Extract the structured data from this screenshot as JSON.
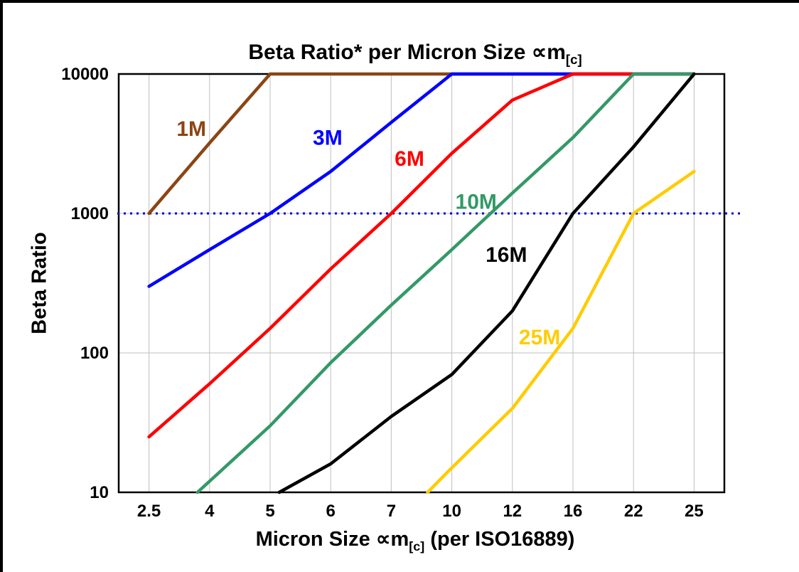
{
  "chart_data": {
    "type": "line",
    "title": {
      "pre": "Beta Ratio* per Micron Size ",
      "sym": "∝m",
      "sub": "[c]"
    },
    "xlabel": {
      "pre": "Micron Size ",
      "sym": "∝m",
      "sub": "[c]",
      "post": " (per ISO16889)"
    },
    "ylabel": "Beta Ratio",
    "x_categories": [
      "2.5",
      "4",
      "5",
      "6",
      "7",
      "10",
      "12",
      "16",
      "22",
      "25"
    ],
    "y_ticks": [
      "10",
      "100",
      "1000",
      "10000"
    ],
    "ylim": [
      10,
      10000
    ],
    "log_y": true,
    "grid": true,
    "grid_color": "#BFBFBF",
    "legend_position": "inline-labels",
    "reference_line": {
      "y": 1000,
      "color": "#0000CC",
      "style": "dotted"
    },
    "series": [
      {
        "name": "1M",
        "color": "#8B4513",
        "points": [
          [
            0,
            1000
          ],
          [
            1,
            3200
          ],
          [
            2,
            10000
          ],
          [
            9,
            10000
          ]
        ],
        "label": [
          0.7,
          3600
        ]
      },
      {
        "name": "3M",
        "color": "#0000FF",
        "points": [
          [
            0,
            300
          ],
          [
            1,
            550
          ],
          [
            2,
            1000
          ],
          [
            3,
            2000
          ],
          [
            4,
            4500
          ],
          [
            5,
            10000
          ],
          [
            9,
            10000
          ]
        ],
        "label": [
          2.95,
          3100
        ]
      },
      {
        "name": "6M",
        "color": "#FF0000",
        "points": [
          [
            0,
            25
          ],
          [
            1,
            60
          ],
          [
            2,
            150
          ],
          [
            3,
            400
          ],
          [
            4,
            1000
          ],
          [
            5,
            2700
          ],
          [
            6,
            6500
          ],
          [
            7,
            10000
          ],
          [
            9,
            10000
          ]
        ],
        "label": [
          4.3,
          2200
        ]
      },
      {
        "name": "10M",
        "color": "#339966",
        "points": [
          [
            0.8,
            10
          ],
          [
            2,
            30
          ],
          [
            3,
            85
          ],
          [
            4,
            220
          ],
          [
            5,
            550
          ],
          [
            6,
            1400
          ],
          [
            7,
            3500
          ],
          [
            8,
            10000
          ],
          [
            9,
            10000
          ]
        ],
        "label": [
          5.4,
          1080
        ]
      },
      {
        "name": "16M",
        "color": "#000000",
        "points": [
          [
            2.15,
            10
          ],
          [
            3,
            16
          ],
          [
            4,
            35
          ],
          [
            5,
            70
          ],
          [
            6,
            200
          ],
          [
            7,
            1000
          ],
          [
            8,
            3000
          ],
          [
            9,
            10000
          ]
        ],
        "label": [
          5.9,
          450
        ]
      },
      {
        "name": "25M",
        "color": "#FFCC00",
        "points": [
          [
            4.6,
            10
          ],
          [
            5,
            15
          ],
          [
            6,
            40
          ],
          [
            7,
            150
          ],
          [
            8,
            1000
          ],
          [
            9,
            2000
          ]
        ],
        "label": [
          6.45,
          115
        ]
      }
    ]
  }
}
